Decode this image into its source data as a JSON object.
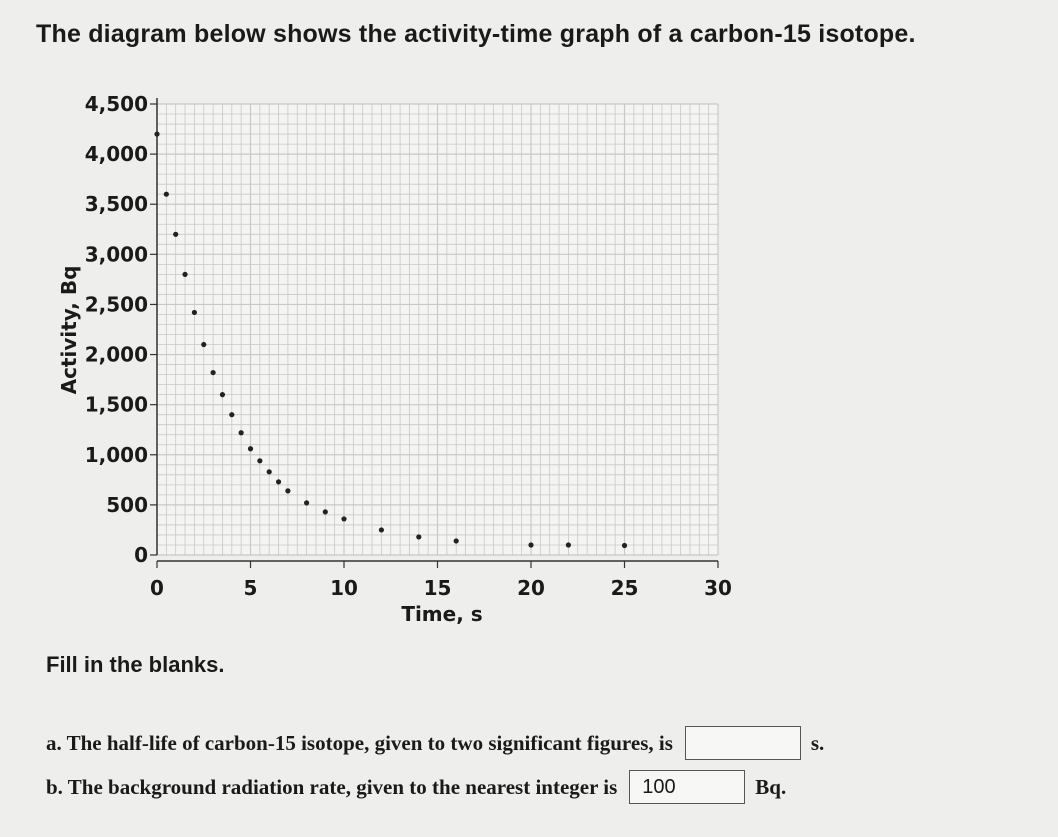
{
  "intro_text": "The diagram below shows the activity-time graph of a carbon-15 isotope.",
  "fill_heading": "Fill in the blanks.",
  "questions": {
    "a": {
      "text": "a. The half-life of carbon-15 isotope, given to two significant figures, is",
      "answer": "",
      "unit": "s."
    },
    "b": {
      "text": "b. The background radiation rate, given to the nearest integer is",
      "answer": "100",
      "unit": "Bq."
    }
  },
  "chart_data": {
    "type": "scatter",
    "title": "",
    "xlabel": "Time, s",
    "ylabel": "Activity, Bq",
    "xlim": [
      0,
      30
    ],
    "ylim": [
      0,
      4500
    ],
    "x_ticks": [
      "0",
      "5",
      "10",
      "15",
      "20",
      "25",
      "30"
    ],
    "y_ticks": [
      "0",
      "500",
      "1,000",
      "1,500",
      "2,000",
      "2,500",
      "3,000",
      "3,500",
      "4,000",
      "4,500"
    ],
    "grid": true,
    "marker_color": "#222222",
    "grid_color": "#c8c8c8",
    "points": [
      {
        "x": 0,
        "y": 4200
      },
      {
        "x": 0.5,
        "y": 3600
      },
      {
        "x": 1,
        "y": 3200
      },
      {
        "x": 1.5,
        "y": 2800
      },
      {
        "x": 2,
        "y": 2420
      },
      {
        "x": 2.5,
        "y": 2100
      },
      {
        "x": 3,
        "y": 1820
      },
      {
        "x": 3.5,
        "y": 1600
      },
      {
        "x": 4,
        "y": 1400
      },
      {
        "x": 4.5,
        "y": 1220
      },
      {
        "x": 5,
        "y": 1060
      },
      {
        "x": 5.5,
        "y": 940
      },
      {
        "x": 6,
        "y": 830
      },
      {
        "x": 6.5,
        "y": 730
      },
      {
        "x": 7,
        "y": 640
      },
      {
        "x": 8,
        "y": 520
      },
      {
        "x": 9,
        "y": 430
      },
      {
        "x": 10,
        "y": 360
      },
      {
        "x": 12,
        "y": 250
      },
      {
        "x": 14,
        "y": 180
      },
      {
        "x": 16,
        "y": 140
      },
      {
        "x": 20,
        "y": 100
      },
      {
        "x": 22,
        "y": 100
      },
      {
        "x": 25,
        "y": 95
      }
    ]
  }
}
